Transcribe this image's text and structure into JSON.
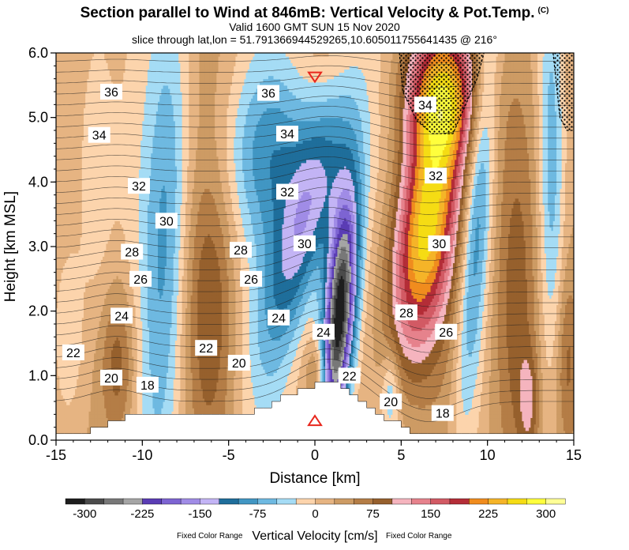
{
  "header": {
    "title": "Section parallel to Wind at 846mB: Vertical Velocity & Pot.Temp.",
    "copyright": "(C)",
    "valid": "Valid 1600 GMT SUN 15 Nov 2020",
    "slice": "slice through lat,lon = 51.791366944529265,10.605011755641435 @ 216°"
  },
  "chart_data": {
    "type": "heatmap",
    "title": "Section parallel to Wind at 846mB: Vertical Velocity & Pot.Temp.",
    "xlabel": "Distance [km]",
    "ylabel": "Height [km MSL]",
    "xlim": [
      -15,
      15
    ],
    "ylim": [
      0,
      6
    ],
    "x_ticks": [
      "-15",
      "-10",
      "-5",
      "0",
      "5",
      "10",
      "15"
    ],
    "y_ticks": [
      "0.0",
      "1.0",
      "2.0",
      "3.0",
      "4.0",
      "5.0",
      "6.0"
    ],
    "colorbar": {
      "label": "Vertical Velocity [cm/s]",
      "note_left": "Fixed Color Range",
      "note_right": "Fixed Color Range",
      "min": -325,
      "max": 325,
      "step": 25,
      "tick_labels": [
        "-300",
        "-225",
        "-150",
        "-75",
        "0",
        "75",
        "150",
        "225",
        "300"
      ],
      "colors": [
        "#1e1e1e",
        "#4b4b4b",
        "#787878",
        "#a5a5a5",
        "#5a3cb4",
        "#7d64d2",
        "#a08ce6",
        "#c3b4f5",
        "#1f6e9b",
        "#4196c3",
        "#6eb9e1",
        "#a5dcf5",
        "#fcd4ac",
        "#e6b482",
        "#cd9b64",
        "#b47d46",
        "#96602d",
        "#f5b4be",
        "#e6828c",
        "#d25a64",
        "#b42d37",
        "#f08c1e",
        "#f5b428",
        "#f5dc14",
        "#ffff3c",
        "#ffff96"
      ]
    },
    "theta_labels": [
      {
        "x": -11.8,
        "y": 5.4,
        "text": "36"
      },
      {
        "x": -12.5,
        "y": 4.73,
        "text": "34"
      },
      {
        "x": -10.2,
        "y": 3.94,
        "text": "32"
      },
      {
        "x": -8.6,
        "y": 3.4,
        "text": "30"
      },
      {
        "x": -10.6,
        "y": 2.92,
        "text": "28"
      },
      {
        "x": -10.1,
        "y": 2.5,
        "text": "26"
      },
      {
        "x": -11.2,
        "y": 1.93,
        "text": "24"
      },
      {
        "x": -14.0,
        "y": 1.36,
        "text": "22"
      },
      {
        "x": -11.8,
        "y": 0.97,
        "text": "20"
      },
      {
        "x": -9.7,
        "y": 0.86,
        "text": "18"
      },
      {
        "x": -2.7,
        "y": 5.38,
        "text": "36"
      },
      {
        "x": -1.6,
        "y": 4.75,
        "text": "34"
      },
      {
        "x": -1.6,
        "y": 3.85,
        "text": "32"
      },
      {
        "x": -0.6,
        "y": 3.05,
        "text": "30"
      },
      {
        "x": -4.3,
        "y": 2.95,
        "text": "28"
      },
      {
        "x": -3.7,
        "y": 2.5,
        "text": "26"
      },
      {
        "x": -2.1,
        "y": 1.9,
        "text": "24"
      },
      {
        "x": -6.3,
        "y": 1.43,
        "text": "22"
      },
      {
        "x": -4.4,
        "y": 1.2,
        "text": "20"
      },
      {
        "x": 0.5,
        "y": 1.68,
        "text": "24"
      },
      {
        "x": 2.0,
        "y": 1.0,
        "text": "22"
      },
      {
        "x": 4.4,
        "y": 0.6,
        "text": "20"
      },
      {
        "x": 7.4,
        "y": 0.42,
        "text": "18"
      },
      {
        "x": 5.3,
        "y": 1.98,
        "text": "28"
      },
      {
        "x": 7.6,
        "y": 1.68,
        "text": "26"
      },
      {
        "x": 7.2,
        "y": 3.05,
        "text": "30"
      },
      {
        "x": 7.0,
        "y": 4.1,
        "text": "32"
      },
      {
        "x": 6.4,
        "y": 5.2,
        "text": "34"
      }
    ],
    "markers": [
      {
        "x": 0,
        "y": 5.63,
        "type": "triangle-down",
        "color": "#e8271d"
      },
      {
        "x": 0,
        "y": 0.3,
        "type": "triangle-up",
        "color": "#e8271d"
      }
    ]
  }
}
